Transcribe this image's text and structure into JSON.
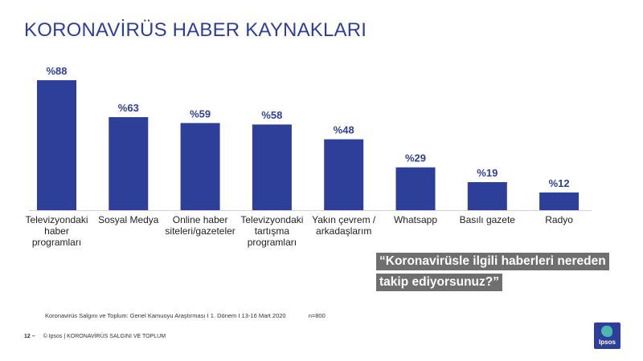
{
  "title": "KORONAVİRÜS HABER KAYNAKLARI",
  "chart_data": {
    "type": "bar",
    "categories": [
      [
        "Televizyondaki",
        "haber",
        "programları"
      ],
      [
        "Sosyal Medya"
      ],
      [
        "Online haber",
        "siteleri/gazeteler"
      ],
      [
        "Televizyondaki",
        "tartışma",
        "programları"
      ],
      [
        "Yakın çevrem /",
        "arkadaşlarım"
      ],
      [
        "Whatsapp"
      ],
      [
        "Basılı gazete"
      ],
      [
        "Radyo"
      ]
    ],
    "values": [
      88,
      63,
      59,
      58,
      48,
      29,
      19,
      12
    ],
    "value_labels": [
      "%88",
      "%63",
      "%59",
      "%58",
      "%48",
      "%29",
      "%19",
      "%12"
    ],
    "ylim": [
      0,
      88
    ],
    "grid": false,
    "bar_color": "#2e3f99",
    "label_color": "#2e3f99"
  },
  "question": {
    "line1": "“Koronavirüsle ilgili haberleri nereden",
    "line2": "takip ediyorsunuz?”"
  },
  "source": {
    "text": "Koronavirüs Salgını ve Toplum: Genel Kamuoyu Araştırması I 1. Dönem I 13-16 Mart 2020",
    "n": "n=800"
  },
  "footer": {
    "page": "12 –",
    "text": "© Ipsos | KORONAVİRÜS SALGINI VE TOPLUM"
  },
  "logo": {
    "text": "Ipsos"
  }
}
